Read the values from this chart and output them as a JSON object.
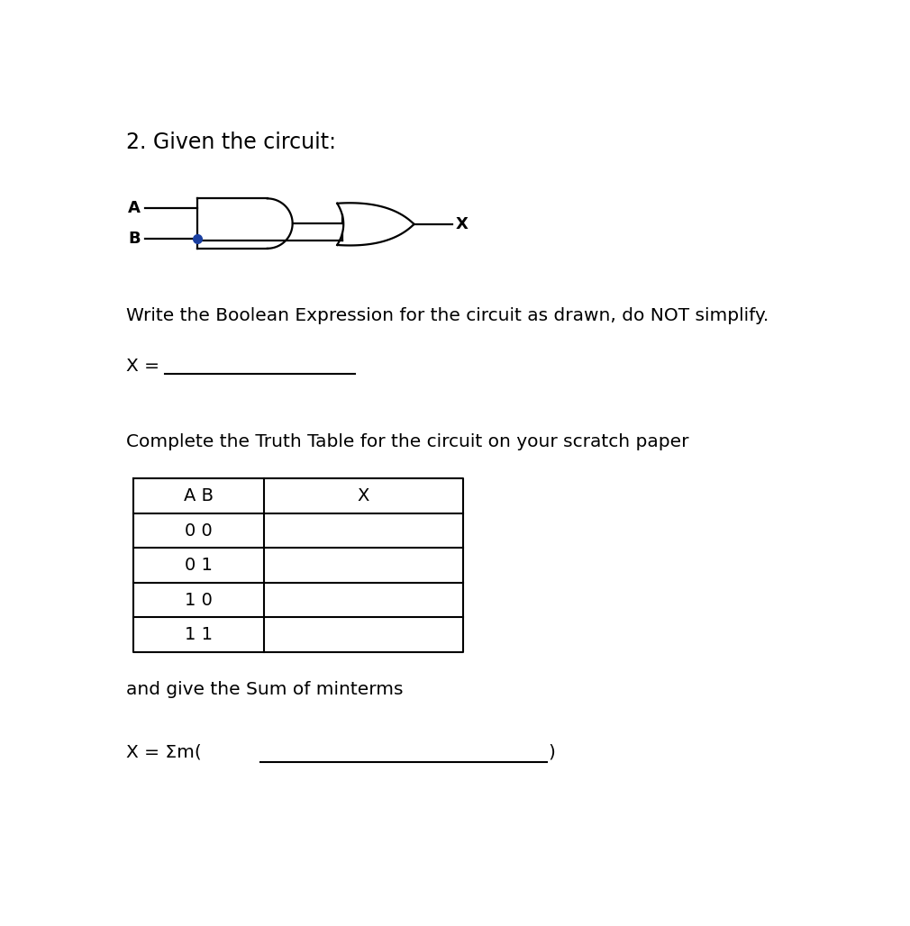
{
  "title": "2. Given the circuit:",
  "title_fontsize": 17,
  "title_fontweight": "normal",
  "text_color": "#000000",
  "bg_color": "#ffffff",
  "label_A": "A",
  "label_B": "B",
  "label_X": "X",
  "bool_expr_label": "X = ",
  "section2_text": "Write the Boolean Expression for the circuit as drawn, do NOT simplify.",
  "section3_text": "Complete the Truth Table for the circuit on your scratch paper",
  "table_headers": [
    "A B",
    "X"
  ],
  "table_rows": [
    "0 0",
    "0 1",
    "1 0",
    "1 1"
  ],
  "section4_text": "and give the Sum of minterms",
  "sigma_expr": "X = Σm(",
  "sigma_close": ")"
}
